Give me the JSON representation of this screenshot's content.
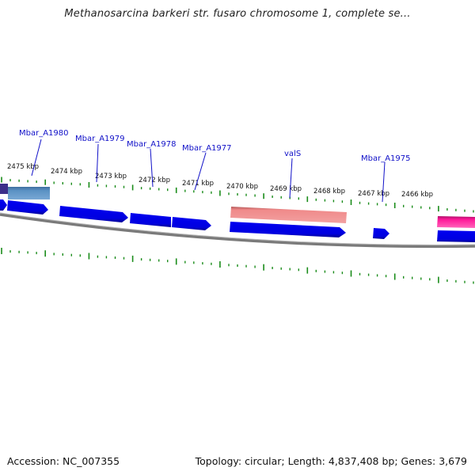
{
  "title": "Methanosarcina barkeri str. fusaro chromosome 1, complete se...",
  "footer": {
    "accession": "Accession: NC_007355",
    "topology": "Topology: circular; Length: 4,837,408 bp; Genes: 3,679"
  },
  "colors": {
    "gene_strand": "#0000e6",
    "gene_strand_dark": "#00009a",
    "rna": "#f08080",
    "rna_dark": "#b04a4a",
    "other_feature": "#ff1493",
    "highlight_gene": "#4f86b8",
    "tick": "#1a8c1a",
    "backbone": "#808080",
    "label": "#1010c8"
  },
  "scale_labels": [
    "2475 kbp",
    "2474 kbp",
    "2473 kbp",
    "2472 kbp",
    "2471 kbp",
    "2470 kbp",
    "2469 kbp",
    "2468 kbp",
    "2467 kbp",
    "2466 kbp"
  ],
  "gene_labels": [
    "Mbar_A1980",
    "Mbar_A1979",
    "Mbar_A1978",
    "Mbar_A1977",
    "valS",
    "Mbar_A1975"
  ]
}
